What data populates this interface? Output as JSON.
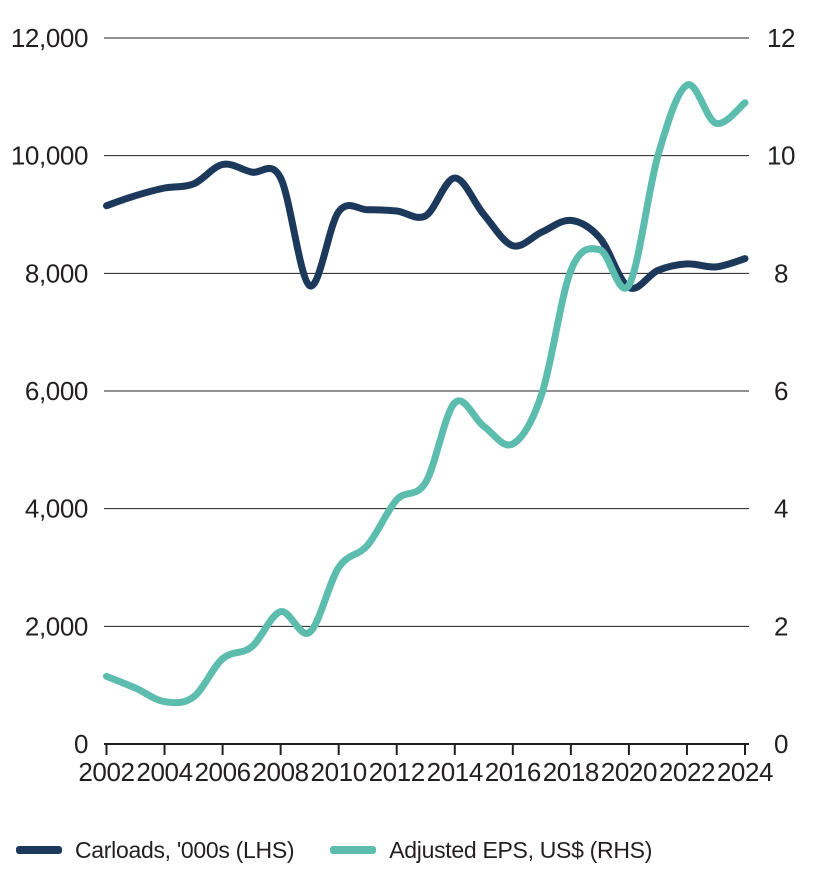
{
  "colors": {
    "carloads_line": "#1C395C",
    "eps_line": "#5CBDAE",
    "text": "#231F20",
    "gridline": "#231F20",
    "background": "#FFFFFF"
  },
  "chart_data": {
    "type": "line",
    "title": "",
    "grid": true,
    "legend_position": "bottom",
    "x": [
      2002,
      2003,
      2004,
      2005,
      2006,
      2007,
      2008,
      2009,
      2010,
      2011,
      2012,
      2013,
      2014,
      2015,
      2016,
      2017,
      2018,
      2019,
      2020,
      2021,
      2022,
      2023,
      2024
    ],
    "x_tick_labels": [
      "2002",
      "2004",
      "2006",
      "2008",
      "2010",
      "2012",
      "2014",
      "2016",
      "2018",
      "2020",
      "2022",
      "2024"
    ],
    "left_axis": {
      "label": "Carloads, '000s",
      "min": 0,
      "max": 12000,
      "tick_values": [
        12000,
        10000,
        8000,
        6000,
        4000,
        2000,
        0
      ],
      "tick_labels": [
        "12,000",
        "10,000",
        "8,000",
        "6,000",
        "4,000",
        "2,000",
        "0"
      ]
    },
    "right_axis": {
      "label": "Adjusted EPS, US$",
      "min": 0,
      "max": 12,
      "tick_values": [
        12,
        10,
        8,
        6,
        4,
        2,
        0
      ],
      "tick_labels": [
        "12",
        "10",
        "8",
        "6",
        "4",
        "2",
        "0"
      ]
    },
    "series": [
      {
        "name": "Carloads, '000s (LHS)",
        "axis": "left",
        "color": "#1C395C",
        "values": [
          9150,
          9320,
          9450,
          9520,
          9850,
          9720,
          9620,
          7790,
          9050,
          9080,
          9060,
          8980,
          9620,
          9000,
          8470,
          8700,
          8900,
          8600,
          7760,
          8050,
          8160,
          8110,
          8250
        ]
      },
      {
        "name": "Adjusted EPS, US$ (RHS)",
        "axis": "right",
        "color": "#5CBDAE",
        "values": [
          1.15,
          0.95,
          0.72,
          0.8,
          1.45,
          1.65,
          2.25,
          1.9,
          3.0,
          3.38,
          4.15,
          4.45,
          5.8,
          5.4,
          5.1,
          5.95,
          8.05,
          8.4,
          7.8,
          10.0,
          11.2,
          10.55,
          10.9
        ]
      }
    ]
  },
  "legend": {
    "items": [
      {
        "label": "Carloads, '000s (LHS)",
        "color": "#1C395C"
      },
      {
        "label": "Adjusted EPS, US$ (RHS)",
        "color": "#5CBDAE"
      }
    ]
  }
}
